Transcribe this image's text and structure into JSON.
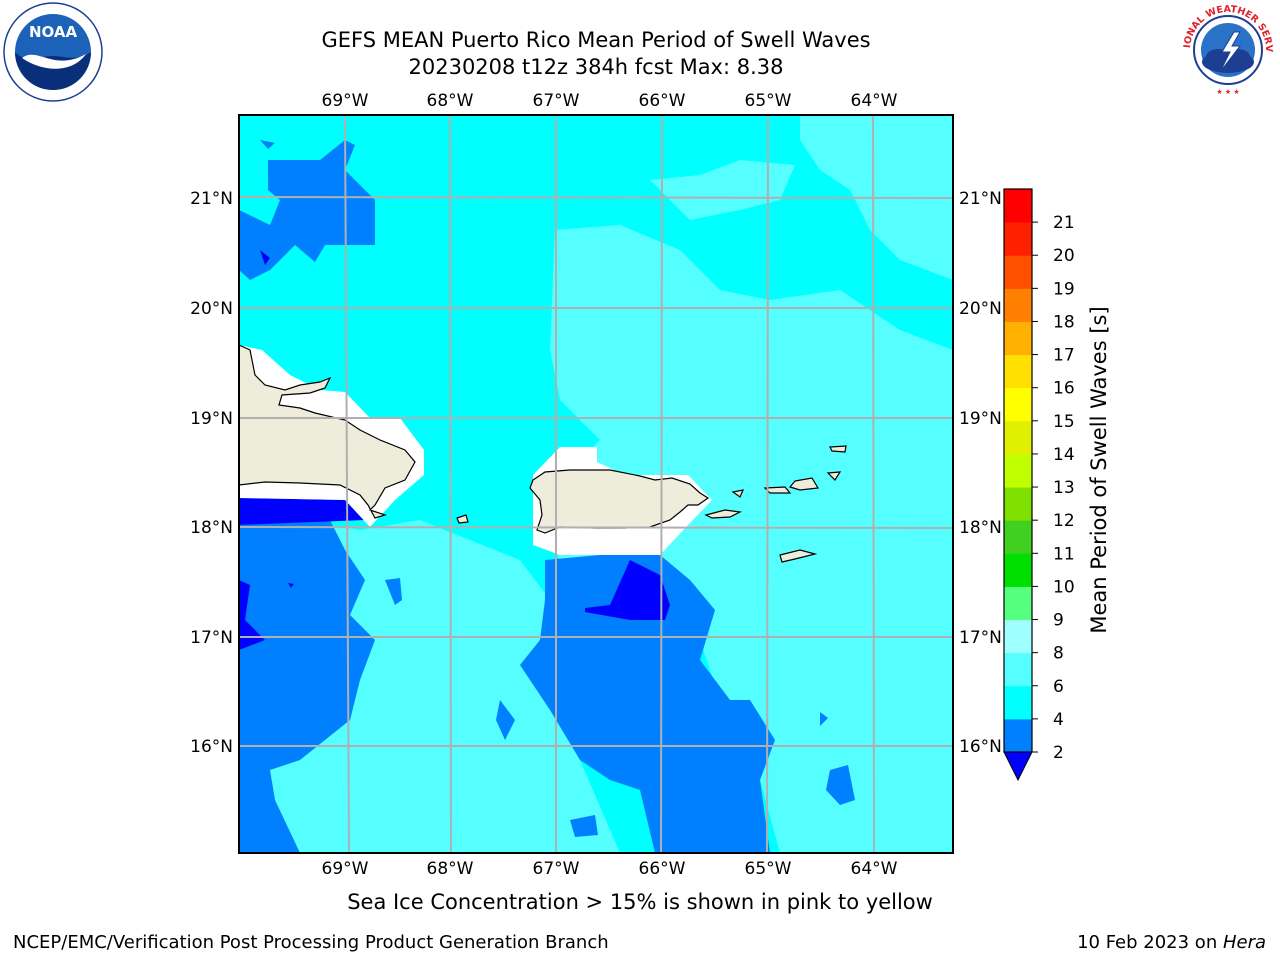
{
  "header": {
    "title_line1": "GEFS MEAN Puerto Rico Mean Period of Swell Waves",
    "title_line2": "20230208 t12z 384h fcst   Max: 8.38"
  },
  "logos": {
    "noaa_text": "NOAA",
    "noaa_ring_text": "NATIONAL OCEANIC AND ATMOSPHERIC ADMINISTRATION · U.S. DEPARTMENT OF COMMERCE",
    "nws_ring_text": "NATIONAL WEATHER SERVICE"
  },
  "map": {
    "lon_ticks": [
      "69°W",
      "68°W",
      "67°W",
      "66°W",
      "65°W",
      "64°W"
    ],
    "lat_ticks": [
      "21°N",
      "20°N",
      "19°N",
      "18°N",
      "17°N",
      "16°N"
    ],
    "colors": {
      "ocean_light": "#00ffff",
      "ocean_pale": "#55ffff",
      "ocean_mid": "#0080ff",
      "ocean_deep": "#0000ff",
      "land": "#eeecdb",
      "grid": "#b0b0b0"
    }
  },
  "colorbar": {
    "label": "Mean Period of Swell Waves [s]",
    "ticks": [
      "2",
      "4",
      "6",
      "8",
      "9",
      "10",
      "11",
      "12",
      "13",
      "14",
      "15",
      "16",
      "17",
      "18",
      "19",
      "20",
      "21"
    ],
    "colors": [
      "#0080ff",
      "#00ffff",
      "#55ffff",
      "#a0ffff",
      "#55ff80",
      "#00e000",
      "#40d020",
      "#80e000",
      "#c0ff00",
      "#e0f000",
      "#ffff00",
      "#ffe000",
      "#ffb000",
      "#ff8000",
      "#ff5000",
      "#ff2000",
      "#ff0000"
    ],
    "under_color": "#0000ff"
  },
  "caption": "Sea Ice Concentration > 15% is shown in pink to yellow",
  "footer": {
    "left": "NCEP/EMC/Verification Post Processing Product Generation Branch",
    "right_prefix": "10 Feb 2023 on ",
    "right_host": "Hera"
  }
}
